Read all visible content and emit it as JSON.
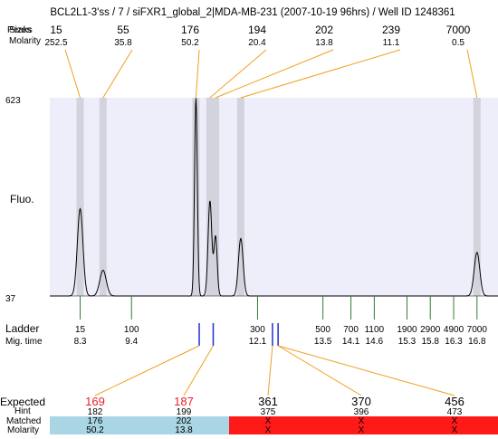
{
  "title": "BCL2L1-3'ss / 7 / siFXR1_global_2|MDA-MB-231 (2007-10-19 96hrs) / Well ID 1248361",
  "colors": {
    "plot_bg": "#eeeefb",
    "peak_band": "#d3d3dd",
    "connector": "#f0a020",
    "ladder_tick": "#2e7d32",
    "match_tick": "#1f2fcf",
    "expected_red": "#e8202a",
    "matched_blue": "#a9d5e5",
    "unmatched_red": "#ff1a1a"
  },
  "header": {
    "row1_label_overlay": [
      "Peaks",
      "Sizes"
    ],
    "row2_label": "Molarity",
    "peaks": [
      {
        "size": "15",
        "molarity": "252.5"
      },
      {
        "size": "55",
        "molarity": "35.8"
      },
      {
        "size": "176",
        "molarity": "50.2"
      },
      {
        "size": "194",
        "molarity": "20.4"
      },
      {
        "size": "202",
        "molarity": "13.8"
      },
      {
        "size": "239",
        "molarity": "11.1"
      },
      {
        "size": "7000",
        "molarity": "0.5"
      }
    ]
  },
  "chart_data": {
    "type": "line",
    "ylabel": "Fluo.",
    "ylim": [
      37,
      623
    ],
    "y_tick_labels": [
      "623",
      "37"
    ],
    "xlim_time": [
      7.65,
      17.25
    ],
    "peaks": [
      {
        "size": 15,
        "time": 8.3,
        "height": 0.44,
        "width": 0.06
      },
      {
        "size": 55,
        "time": 8.79,
        "height": 0.13,
        "width": 0.07
      },
      {
        "size": 176,
        "time": 10.78,
        "height": 1.0,
        "width": 0.03
      },
      {
        "size": 194,
        "time": 11.08,
        "height": 0.48,
        "width": 0.04
      },
      {
        "size": 202,
        "time": 11.2,
        "height": 0.3,
        "width": 0.035
      },
      {
        "size": 239,
        "time": 11.74,
        "height": 0.29,
        "width": 0.05
      },
      {
        "size": 7000,
        "time": 16.8,
        "height": 0.22,
        "width": 0.06
      }
    ],
    "ladder": {
      "label": "Ladder",
      "time_label": "Mig. time",
      "sizes": [
        "15",
        "100",
        "300",
        "500",
        "700",
        "1100",
        "1900",
        "2900",
        "4900",
        "7000"
      ],
      "times": [
        "8.3",
        "9.4",
        "12.1",
        "13.5",
        "14.1",
        "14.6",
        "15.3",
        "15.8",
        "16.3",
        "16.8"
      ]
    },
    "match_marks_time": [
      10.85,
      11.15,
      12.42,
      12.54
    ]
  },
  "footer": {
    "expected_label": "Expected",
    "hint_label": "Hint",
    "matched_label": "Matched",
    "molarity_label": "Molarity",
    "columns": [
      {
        "expected": "169",
        "hint": "182",
        "matched": "176",
        "molarity": "50.2",
        "status": "matched"
      },
      {
        "expected": "187",
        "hint": "199",
        "matched": "202",
        "molarity": "13.8",
        "status": "matched"
      },
      {
        "expected": "361",
        "hint": "375",
        "matched": "X",
        "molarity": "X",
        "status": "unmatched"
      },
      {
        "expected": "370",
        "hint": "396",
        "matched": "X",
        "molarity": "X",
        "status": "unmatched"
      },
      {
        "expected": "456",
        "hint": "473",
        "matched": "X",
        "molarity": "X",
        "status": "unmatched"
      }
    ]
  }
}
